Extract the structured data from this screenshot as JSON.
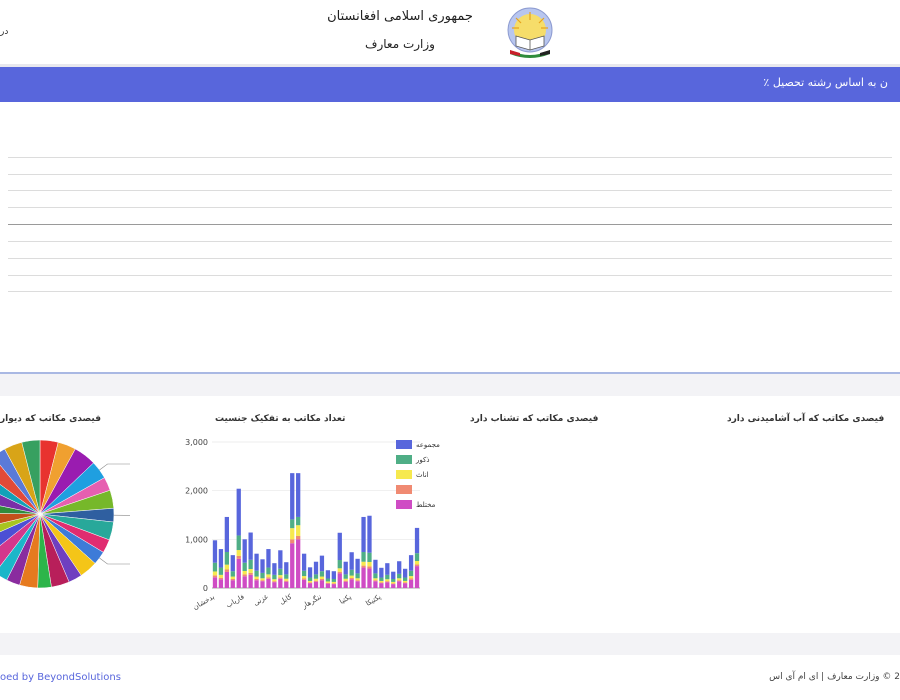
{
  "header": {
    "left_text": "در",
    "title_line1": "جمهوری اسلامی افغانستان",
    "title_line2": "وزارت معارف"
  },
  "band": {
    "title": "ن به اساس رشته تحصیل ٪"
  },
  "charts": {
    "pie_title": "فیصدی مکاتب که دیوار",
    "bar_title": "تعداد مکاتب به تفکیک جنسیت",
    "toilet_title": "فیصدی مکاتب که تشناب دارد",
    "water_title": "فیصدی مکاتب که آب آشامیدنی دارد"
  },
  "chart_data": [
    {
      "type": "pie",
      "title": "فیصدی مکاتب که دیوار",
      "colors": [
        "#e8332f",
        "#f0a030",
        "#9a1cb0",
        "#1f9fe0",
        "#e65fb0",
        "#76b82a",
        "#2f5fa0",
        "#28a89a",
        "#e02c70",
        "#3d7bd8",
        "#f4c518",
        "#6f3fc0",
        "#b81f5a",
        "#2db54a",
        "#e67a1f",
        "#8a2c9f",
        "#1bb6c9",
        "#d4378c",
        "#4c4fd4",
        "#a8c420",
        "#c2501a",
        "#2f8c3c",
        "#7a2fa8",
        "#13a0b8",
        "#e24a38",
        "#5a7ad8",
        "#d8a418",
        "#37a060"
      ],
      "values": [
        4,
        4,
        5,
        4,
        3,
        4,
        3,
        4,
        3,
        3,
        4,
        3,
        4,
        3,
        4,
        3,
        3,
        4,
        4,
        3,
        4,
        3,
        4,
        3,
        4,
        3,
        4,
        4
      ]
    },
    {
      "type": "bar",
      "title": "تعداد مکاتب به تفکیک جنسیت",
      "ylim": [
        0,
        3000
      ],
      "yticks": [
        "3,000",
        "2,000",
        "1,000",
        "0"
      ],
      "categories": [
        "بدخشان",
        "",
        "",
        "",
        "",
        "فاریاب",
        "",
        "",
        "",
        "غزنی",
        "",
        "",
        "",
        "کابل",
        "",
        "",
        "",
        "",
        "ننگرهار",
        "",
        "",
        "",
        "",
        "پکتیا",
        "",
        "",
        "",
        "",
        "پکتیکا",
        "",
        "",
        "",
        "",
        "",
        ""
      ],
      "legend": [
        "مجموعه",
        "ذکور",
        "اناث",
        "",
        "مختلط"
      ],
      "series": [
        {
          "name": "مجموعه",
          "color": "#5866dc",
          "values": [
            460,
            380,
            720,
            330,
            960,
            480,
            560,
            350,
            280,
            380,
            240,
            380,
            250,
            950,
            900,
            350,
            210,
            260,
            320,
            170,
            160,
            560,
            260,
            360,
            300,
            720,
            760,
            280,
            200,
            240,
            150,
            260,
            180,
            320,
            520
          ]
        },
        {
          "name": "ذکور",
          "color": "#4fae86",
          "values": [
            180,
            150,
            260,
            110,
            300,
            170,
            190,
            120,
            110,
            140,
            90,
            130,
            90,
            180,
            170,
            110,
            70,
            90,
            110,
            60,
            60,
            170,
            90,
            120,
            100,
            200,
            190,
            100,
            70,
            90,
            60,
            90,
            70,
            110,
            160
          ]
        },
        {
          "name": "اناث",
          "color": "#f6e94e",
          "values": [
            80,
            60,
            100,
            50,
            120,
            70,
            80,
            50,
            40,
            60,
            40,
            50,
            40,
            230,
            220,
            50,
            30,
            40,
            50,
            30,
            30,
            70,
            40,
            50,
            40,
            80,
            90,
            40,
            30,
            40,
            30,
            40,
            30,
            50,
            70
          ]
        },
        {
          "name": "",
          "color": "#f08a72",
          "values": [
            40,
            30,
            50,
            25,
            60,
            40,
            40,
            25,
            20,
            30,
            20,
            25,
            20,
            80,
            70,
            25,
            15,
            20,
            25,
            15,
            15,
            35,
            20,
            25,
            20,
            40,
            45,
            20,
            15,
            20,
            15,
            20,
            15,
            25,
            35
          ]
        },
        {
          "name": "مختلط",
          "color": "#cf4cc4",
          "values": [
            220,
            180,
            330,
            160,
            600,
            240,
            270,
            160,
            140,
            190,
            120,
            190,
            130,
            920,
            1000,
            170,
            100,
            130,
            160,
            90,
            80,
            300,
            130,
            180,
            140,
            420,
            400,
            140,
            100,
            120,
            80,
            140,
            100,
            170,
            450
          ]
        }
      ]
    }
  ],
  "footer": {
    "left": "oed by BeyondSolutions",
    "right": "2 © وزارت معارف | ای ام آی اس"
  }
}
